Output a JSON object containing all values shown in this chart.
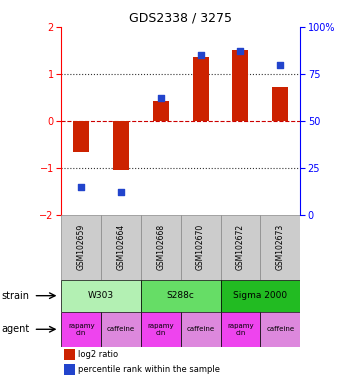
{
  "title": "GDS2338 / 3275",
  "samples": [
    "GSM102659",
    "GSM102664",
    "GSM102668",
    "GSM102670",
    "GSM102672",
    "GSM102673"
  ],
  "log2_ratio": [
    -0.65,
    -1.05,
    0.42,
    1.35,
    1.5,
    0.72
  ],
  "percentile": [
    15,
    12,
    62,
    85,
    87,
    80
  ],
  "ylim_left": [
    -2,
    2
  ],
  "ylim_right": [
    0,
    100
  ],
  "yticks_left": [
    -2,
    -1,
    0,
    1,
    2
  ],
  "yticks_right": [
    0,
    25,
    50,
    75,
    100
  ],
  "ytick_labels_right": [
    "0",
    "25",
    "50",
    "75",
    "100%"
  ],
  "strains": [
    {
      "label": "W303",
      "color": "#b3f0b3",
      "start": 0,
      "end": 2
    },
    {
      "label": "S288c",
      "color": "#66dd66",
      "start": 2,
      "end": 4
    },
    {
      "label": "Sigma 2000",
      "color": "#22bb22",
      "start": 4,
      "end": 6
    }
  ],
  "agents": [
    {
      "label": "rapamycin",
      "color": "#ee44ee",
      "start": 0,
      "end": 1
    },
    {
      "label": "caffeine",
      "color": "#dd88dd",
      "start": 1,
      "end": 2
    },
    {
      "label": "rapamycin",
      "color": "#ee44ee",
      "start": 2,
      "end": 3
    },
    {
      "label": "caffeine",
      "color": "#dd88dd",
      "start": 3,
      "end": 4
    },
    {
      "label": "rapamycin",
      "color": "#ee44ee",
      "start": 4,
      "end": 5
    },
    {
      "label": "caffeine",
      "color": "#dd88dd",
      "start": 5,
      "end": 6
    }
  ],
  "bar_color": "#cc2200",
  "dot_color": "#2244cc",
  "grid_color": "#333333",
  "zero_line_color": "#cc0000",
  "sample_bg_color": "#cccccc",
  "sample_border_color": "#888888",
  "legend_bar_label": "log2 ratio",
  "legend_dot_label": "percentile rank within the sample",
  "strain_label": "strain",
  "agent_label": "agent"
}
